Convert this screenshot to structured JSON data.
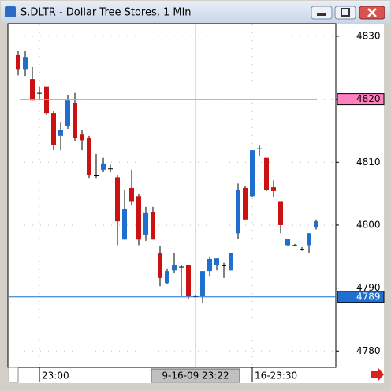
{
  "window_title": "S.DLTR - Dollar Tree Stores, 1 Min",
  "chart_data": {
    "type": "candlestick",
    "categories": [
      null,
      null,
      null,
      "23:00",
      null,
      null,
      null,
      null,
      null,
      null,
      null,
      null,
      null,
      null,
      null,
      null,
      null,
      null,
      null,
      null,
      null,
      null,
      null,
      null,
      null,
      "9-16-09 23:22",
      null,
      null,
      null,
      null,
      null,
      null,
      null,
      "16-23:30",
      null,
      null,
      null,
      null,
      null,
      null,
      null,
      null,
      null
    ],
    "open": [
      4827.0,
      4824.8,
      4823.2,
      4821.0,
      4822.0,
      4817.8,
      4814.2,
      4815.7,
      4819.4,
      4814.4,
      4813.8,
      4807.9,
      4808.8,
      4809.0,
      4807.6,
      4797.7,
      4805.9,
      4804.6,
      4798.5,
      4802.1,
      4795.6,
      4790.8,
      4792.8,
      4793.4,
      4793.7,
      4788.7,
      4788.7,
      4792.7,
      4793.7,
      4793.6,
      4792.8,
      4798.7,
      4805.9,
      4804.6,
      4812.2,
      4810.7,
      4806.0,
      4803.7,
      4796.8,
      4796.8,
      4796.2,
      4796.8,
      4799.6
    ],
    "high": [
      4827.6,
      4827.7,
      4825.1,
      4822.0,
      4822.0,
      4818.2,
      4816.3,
      4820.7,
      4821.0,
      4815.1,
      4814.2,
      4811.3,
      4810.7,
      4809.6,
      4807.9,
      4805.6,
      4808.8,
      4805.0,
      4802.9,
      4802.9,
      4796.6,
      4793.1,
      4795.6,
      4793.7,
      4793.7,
      4788.9,
      4792.7,
      4795.0,
      4794.7,
      4794.0,
      4795.6,
      4806.6,
      4806.2,
      4811.9,
      4812.8,
      4810.7,
      4807.1,
      4803.7,
      4797.8,
      4797.0,
      4796.5,
      4798.7,
      4800.9
    ],
    "low": [
      4823.8,
      4823.7,
      4819.8,
      4819.8,
      4817.6,
      4811.9,
      4811.9,
      4815.3,
      4813.4,
      4811.9,
      4807.5,
      4807.5,
      4808.4,
      4808.4,
      4796.8,
      4797.7,
      4803.1,
      4796.8,
      4797.5,
      4797.7,
      4790.3,
      4790.6,
      4792.4,
      4788.7,
      4788.3,
      4788.5,
      4787.7,
      4791.8,
      4792.8,
      4791.6,
      4792.8,
      4797.8,
      4800.9,
      4804.4,
      4810.9,
      4805.4,
      4804.4,
      4798.7,
      4796.6,
      4796.6,
      4795.9,
      4795.6,
      4799.3
    ],
    "close": [
      4824.8,
      4826.7,
      4819.8,
      4821.0,
      4817.8,
      4812.8,
      4815.1,
      4819.8,
      4813.8,
      4813.5,
      4807.9,
      4807.9,
      4809.8,
      4809.0,
      4800.6,
      4802.5,
      4803.7,
      4797.7,
      4801.9,
      4797.7,
      4791.6,
      4792.7,
      4793.7,
      4793.4,
      4788.7,
      4788.7,
      4792.7,
      4794.6,
      4794.7,
      4793.6,
      4795.6,
      4805.6,
      4800.9,
      4811.9,
      4812.2,
      4805.6,
      4805.4,
      4800.0,
      4797.8,
      4796.8,
      4796.2,
      4798.7,
      4800.6
    ],
    "up_color": "#1f6fd0",
    "down_color": "#cc1111",
    "ylim": [
      4777.4,
      4832.0
    ],
    "yticks": [
      4780,
      4790,
      4800,
      4810,
      4820,
      4830
    ],
    "grid": true,
    "crosshair_index": 25,
    "hlines": [
      {
        "value": 4820,
        "label": "4820",
        "color": "#ff80c0"
      },
      {
        "value": 4788.6,
        "label": "4789",
        "color": "#1f6fd0"
      }
    ]
  }
}
